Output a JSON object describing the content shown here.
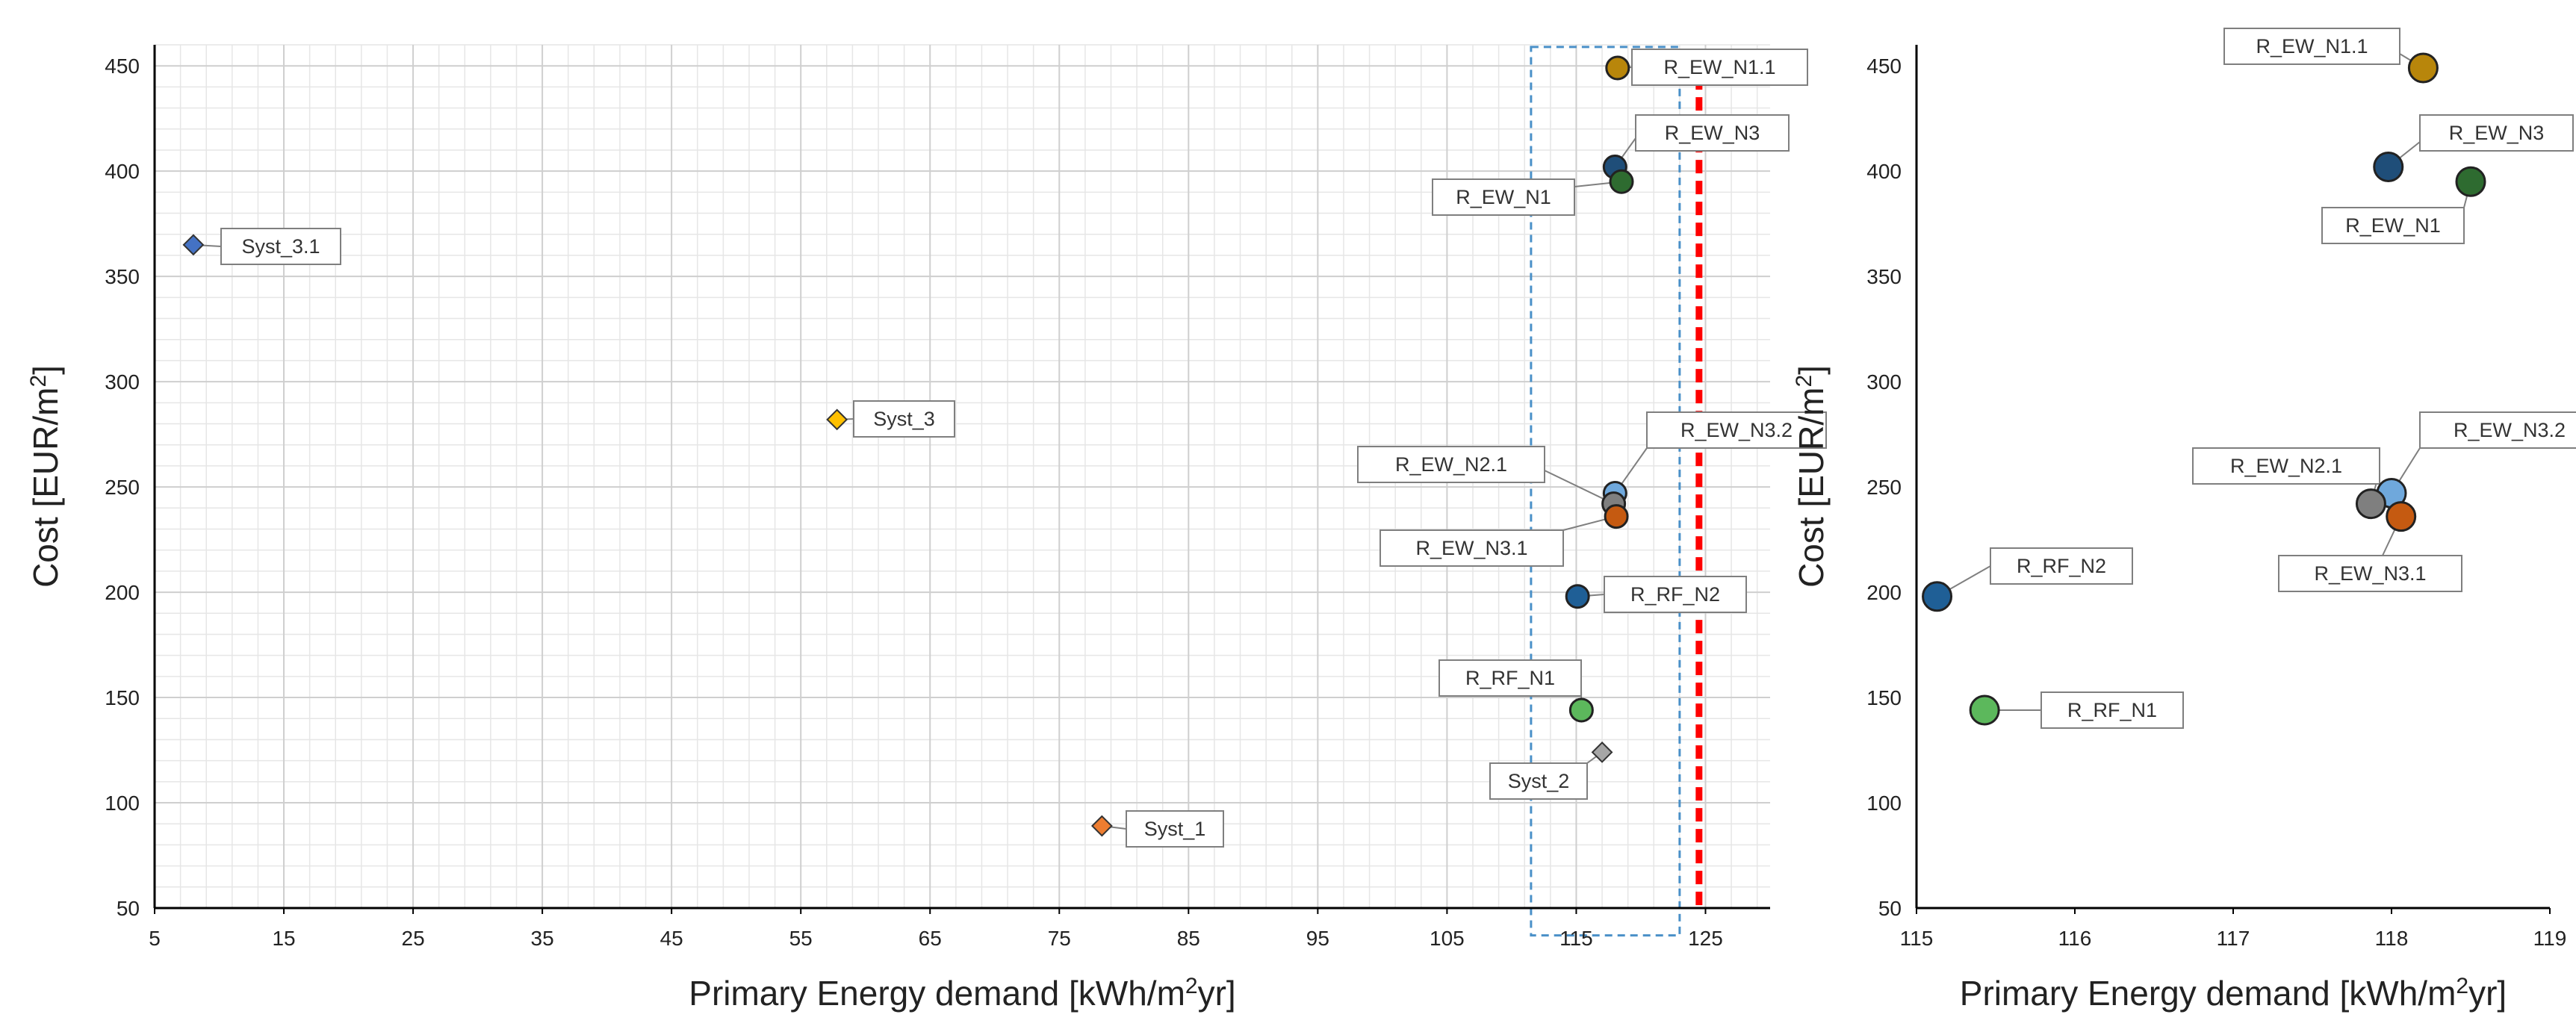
{
  "chart_data": [
    {
      "type": "scatter",
      "id": "full-range",
      "xlabel": "Primary Energy demand [kWh/m²yr]",
      "ylabel": "Cost [EUR/m²]",
      "xlim": [
        5,
        130
      ],
      "ylim": [
        50,
        460
      ],
      "xticks": [
        5,
        15,
        25,
        35,
        45,
        55,
        65,
        75,
        85,
        95,
        105,
        115,
        125
      ],
      "yticks": [
        50,
        100,
        150,
        200,
        250,
        300,
        350,
        400,
        450
      ],
      "grid": true,
      "threshold_line": {
        "x": 124.5,
        "color": "#ff0000",
        "style": "dashed"
      },
      "zoom_box": {
        "x": [
          111.5,
          123
        ],
        "y": [
          37,
          459
        ],
        "color": "#4a90c8"
      },
      "points": [
        {
          "label": "R_EW_N1.1",
          "x": 118.2,
          "y": 449,
          "marker": "circle",
          "color": "#b8860b"
        },
        {
          "label": "R_EW_N3",
          "x": 118.0,
          "y": 402,
          "marker": "circle",
          "color": "#1f4e79"
        },
        {
          "label": "R_EW_N1",
          "x": 118.5,
          "y": 395,
          "marker": "circle",
          "color": "#2e6b30"
        },
        {
          "label": "Syst_3.1",
          "x": 8.0,
          "y": 365,
          "marker": "diamond",
          "color": "#4472c4"
        },
        {
          "label": "Syst_3",
          "x": 57.8,
          "y": 282,
          "marker": "diamond",
          "color": "#ffc000"
        },
        {
          "label": "R_EW_N3.2",
          "x": 118.0,
          "y": 247,
          "marker": "circle",
          "color": "#6fa8dc"
        },
        {
          "label": "R_EW_N2.1",
          "x": 117.9,
          "y": 242,
          "marker": "circle",
          "color": "#7f7f7f"
        },
        {
          "label": "R_EW_N3.1",
          "x": 118.1,
          "y": 236,
          "marker": "circle",
          "color": "#c55a11"
        },
        {
          "label": "R_RF_N2",
          "x": 115.1,
          "y": 198,
          "marker": "circle",
          "color": "#1f5f96"
        },
        {
          "label": "R_RF_N1",
          "x": 115.4,
          "y": 144,
          "marker": "circle",
          "color": "#5cb85c"
        },
        {
          "label": "Syst_2",
          "x": 117.0,
          "y": 124,
          "marker": "diamond",
          "color": "#a6a6a6"
        },
        {
          "label": "Syst_1",
          "x": 78.3,
          "y": 89,
          "marker": "diamond",
          "color": "#ed7d31"
        }
      ]
    },
    {
      "type": "scatter",
      "id": "zoom",
      "xlabel": "Primary Energy demand [kWh/m²yr]",
      "ylabel": "Cost [EUR/m²]",
      "xlim": [
        115,
        119
      ],
      "ylim": [
        50,
        460
      ],
      "xticks": [
        115,
        116,
        117,
        118,
        119
      ],
      "yticks": [
        50,
        100,
        150,
        200,
        250,
        300,
        350,
        400,
        450
      ],
      "grid": false,
      "points": [
        {
          "label": "R_EW_N1.1",
          "x": 118.2,
          "y": 449,
          "marker": "circle",
          "color": "#b8860b"
        },
        {
          "label": "R_EW_N3",
          "x": 117.98,
          "y": 402,
          "marker": "circle",
          "color": "#1f4e79"
        },
        {
          "label": "R_EW_N1",
          "x": 118.5,
          "y": 395,
          "marker": "circle",
          "color": "#2e6b30"
        },
        {
          "label": "R_EW_N3.2",
          "x": 118.0,
          "y": 247,
          "marker": "circle",
          "color": "#6fa8dc"
        },
        {
          "label": "R_EW_N2.1",
          "x": 117.87,
          "y": 242,
          "marker": "circle",
          "color": "#7f7f7f"
        },
        {
          "label": "R_EW_N3.1",
          "x": 118.06,
          "y": 236,
          "marker": "circle",
          "color": "#c55a11"
        },
        {
          "label": "R_RF_N2",
          "x": 115.13,
          "y": 198,
          "marker": "circle",
          "color": "#1f5f96"
        },
        {
          "label": "R_RF_N1",
          "x": 115.43,
          "y": 144,
          "marker": "circle",
          "color": "#5cb85c"
        }
      ]
    }
  ]
}
